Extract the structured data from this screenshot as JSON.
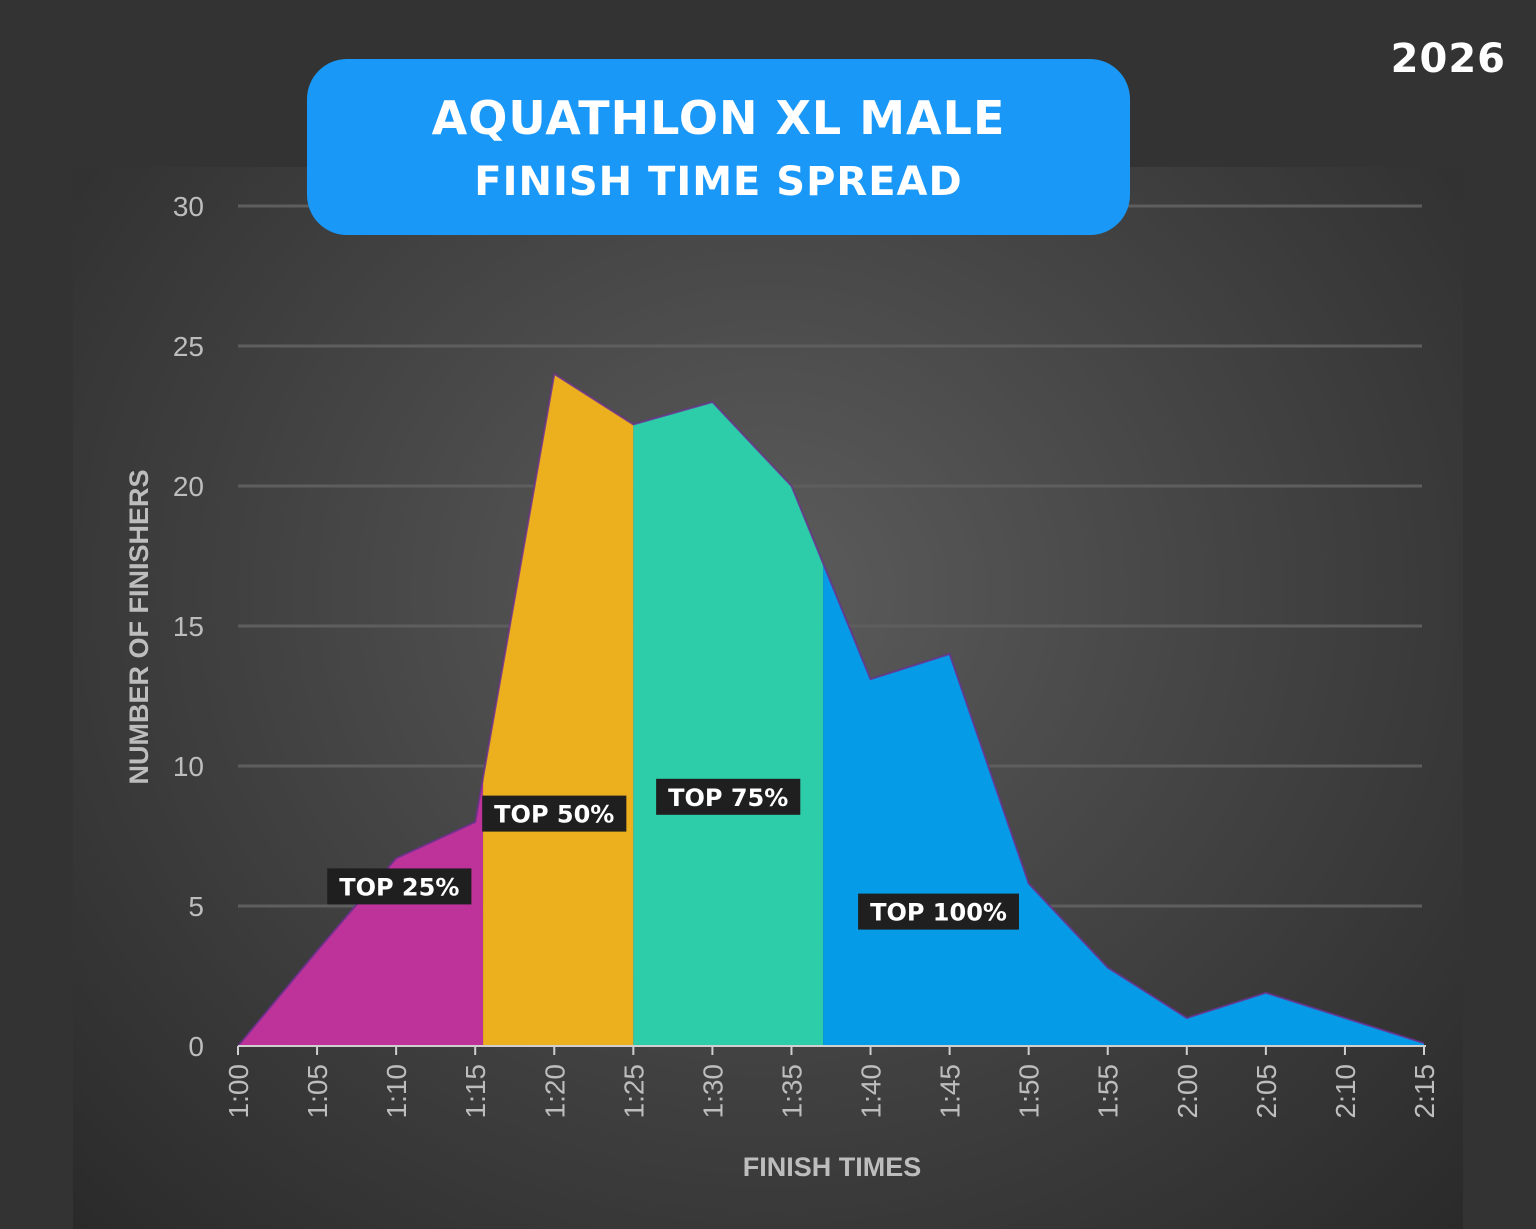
{
  "year": "2026",
  "title": {
    "line1": "AQUATHLON XL MALE",
    "line2": "FINISH TIME SPREAD"
  },
  "colors": {
    "band_top25": "#bd3399",
    "band_top50": "#ecb01f",
    "band_top75": "#2ecda9",
    "band_top100": "#069be7",
    "title_bg": "#1a98f8"
  },
  "chart_data": {
    "type": "area",
    "title": "AQUATHLON XL MALE FINISH TIME SPREAD",
    "xlabel": "FINISH TIMES",
    "ylabel": "NUMBER OF FINISHERS",
    "ylim": [
      0,
      30
    ],
    "yticks": [
      0,
      5,
      10,
      15,
      20,
      25,
      30
    ],
    "grid": true,
    "x_minutes": [
      60,
      65,
      70,
      75,
      80,
      85,
      90,
      95,
      100,
      105,
      110,
      115,
      120,
      125,
      130,
      135
    ],
    "categories": [
      "1:00",
      "1:05",
      "1:10",
      "1:15",
      "1:20",
      "1:25",
      "1:30",
      "1:35",
      "1:40",
      "1:45",
      "1:50",
      "1:55",
      "2:00",
      "2:05",
      "2:10",
      "2:15"
    ],
    "values": [
      0,
      3.4,
      6.7,
      8,
      24,
      22.2,
      23,
      20,
      13.1,
      14,
      5.8,
      2.8,
      1,
      1.9,
      1,
      0.1
    ],
    "bands": [
      {
        "name": "TOP 25%",
        "from_min": 60,
        "to_min": 75.5,
        "color_key": "band_top25",
        "label_min": 70.2,
        "label_y": 5.7
      },
      {
        "name": "TOP 50%",
        "from_min": 75.5,
        "to_min": 85,
        "color_key": "band_top50",
        "label_min": 80,
        "label_y": 8.3
      },
      {
        "name": "TOP 75%",
        "from_min": 85,
        "to_min": 97,
        "color_key": "band_top75",
        "label_min": 91,
        "label_y": 8.9
      },
      {
        "name": "TOP 100%",
        "from_min": 97,
        "to_min": 135,
        "color_key": "band_top100",
        "label_min": 104.3,
        "label_y": 4.8
      }
    ]
  }
}
